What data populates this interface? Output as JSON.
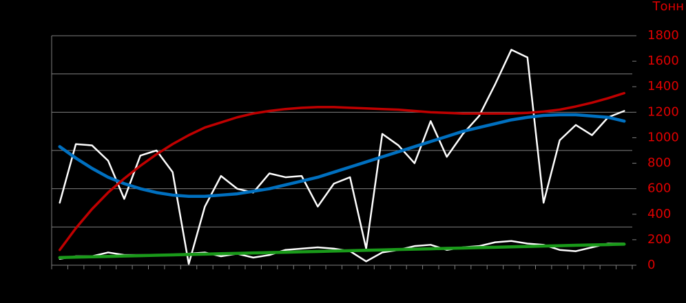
{
  "chart_data": {
    "type": "line",
    "y_axis_label": "Тонн",
    "categories": [
      null,
      null,
      null,
      null,
      null,
      null,
      null,
      null,
      null,
      null,
      null,
      null,
      null,
      null,
      null,
      null,
      null,
      null,
      null,
      null,
      null,
      null,
      null,
      null,
      null,
      null,
      null,
      null,
      null,
      null,
      null,
      null,
      null,
      null,
      null,
      null
    ],
    "series": [
      {
        "color": "#ffffff",
        "width": 2.5,
        "values": [
          490,
          950,
          940,
          820,
          520,
          860,
          900,
          730,
          10,
          460,
          700,
          600,
          570,
          720,
          690,
          700,
          460,
          640,
          690,
          130,
          1030,
          940,
          800,
          1130,
          850,
          1030,
          1170,
          1420,
          1690,
          1630,
          490,
          980,
          1100,
          1020,
          1160,
          1210
        ]
      },
      {
        "color": "#ffffff",
        "width": 2.5,
        "values": [
          50,
          70,
          70,
          100,
          80,
          80,
          80,
          80,
          90,
          100,
          70,
          90,
          60,
          80,
          120,
          130,
          140,
          130,
          110,
          30,
          100,
          120,
          150,
          160,
          120,
          140,
          150,
          180,
          190,
          170,
          160,
          120,
          110,
          140,
          170,
          170
        ]
      },
      {
        "color": "#0070c0",
        "width": 4.5,
        "values": [
          930,
          840,
          760,
          690,
          640,
          600,
          570,
          550,
          540,
          540,
          550,
          560,
          580,
          600,
          630,
          660,
          690,
          730,
          770,
          810,
          850,
          890,
          930,
          970,
          1010,
          1050,
          1080,
          1110,
          1140,
          1160,
          1175,
          1180,
          1180,
          1170,
          1160,
          1130
        ]
      },
      {
        "color": "#c00000",
        "width": 3.5,
        "values": [
          120,
          290,
          440,
          570,
          680,
          780,
          870,
          950,
          1020,
          1080,
          1120,
          1160,
          1190,
          1210,
          1225,
          1235,
          1240,
          1240,
          1235,
          1230,
          1225,
          1220,
          1210,
          1200,
          1195,
          1190,
          1190,
          1190,
          1190,
          1195,
          1205,
          1220,
          1245,
          1275,
          1310,
          1350
        ]
      },
      {
        "color": "#1a9a1a",
        "width": 4.5,
        "values": [
          60,
          63,
          66,
          69,
          72,
          75,
          78,
          81,
          84,
          87,
          90,
          93,
          96,
          99,
          102,
          105,
          108,
          111,
          114,
          117,
          120,
          123,
          126,
          129,
          132,
          135,
          138,
          141,
          144,
          147,
          150,
          153,
          156,
          159,
          162,
          165
        ]
      }
    ],
    "ylim": [
      0,
      1800
    ],
    "yticks": [
      0,
      200,
      400,
      600,
      800,
      1000,
      1200,
      1400,
      1600,
      1800
    ],
    "y_gridlines": [
      300,
      600,
      900,
      1200,
      1500,
      1800
    ],
    "grid": true
  }
}
